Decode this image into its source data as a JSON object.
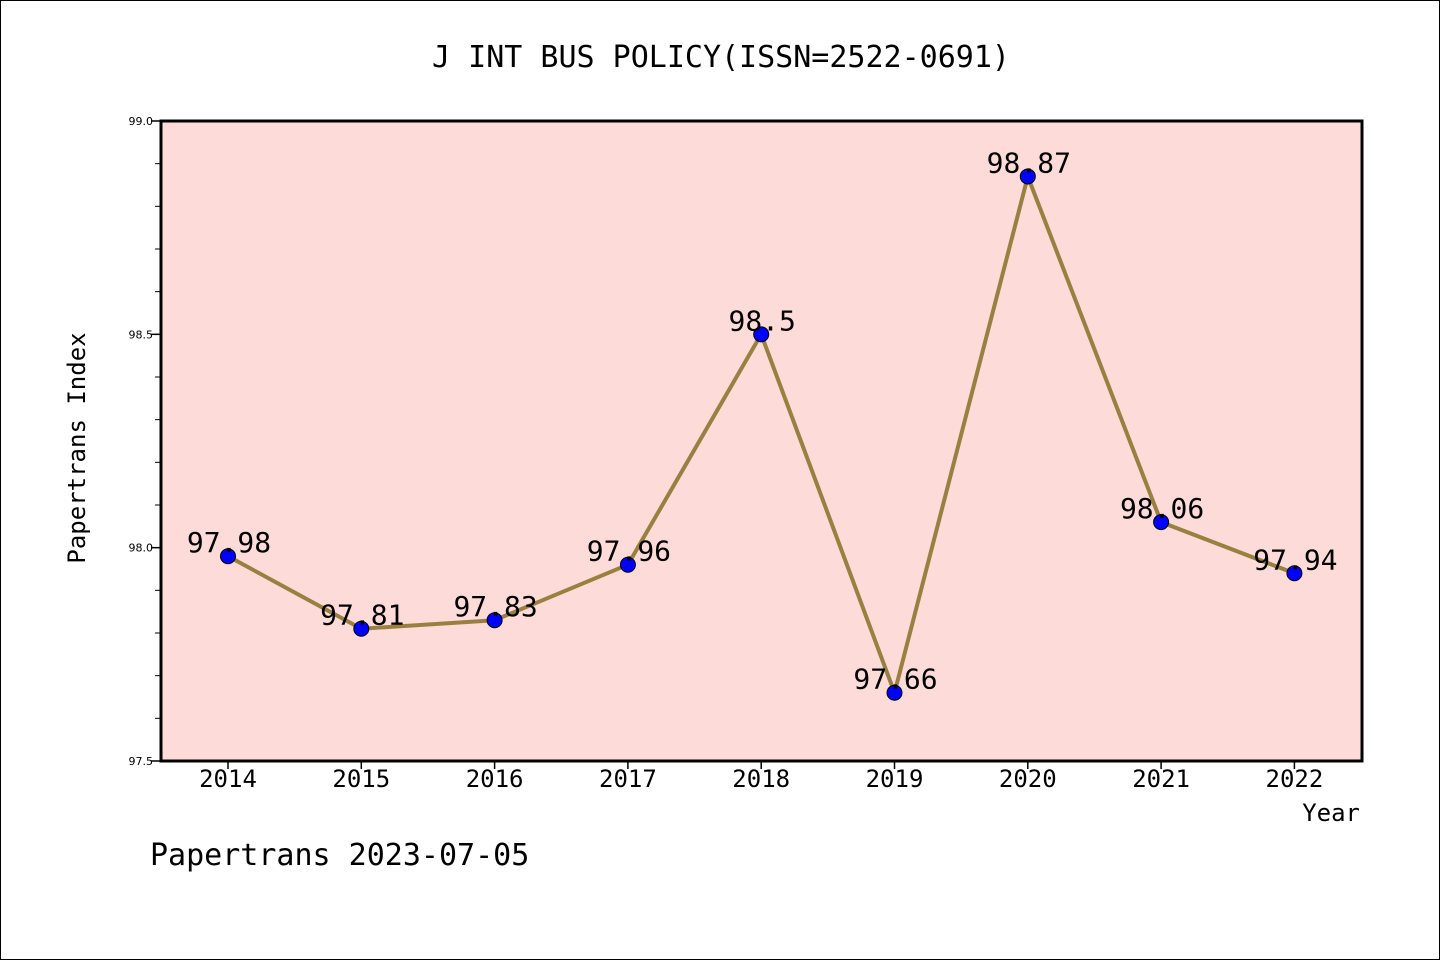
{
  "chart_data": {
    "type": "line",
    "title": "J INT BUS POLICY(ISSN=2522-0691)",
    "xlabel": "Year",
    "ylabel": "Papertrans Index",
    "categories": [
      "2014",
      "2015",
      "2016",
      "2017",
      "2018",
      "2019",
      "2020",
      "2021",
      "2022"
    ],
    "values": [
      97.98,
      97.81,
      97.83,
      97.96,
      98.5,
      97.66,
      98.87,
      98.06,
      97.94
    ],
    "data_labels": [
      "97.98",
      "97.81",
      "97.83",
      "97.96",
      "98.5",
      "97.66",
      "98.87",
      "98.06",
      "97.94"
    ],
    "ylim": [
      97.5,
      99.0
    ],
    "yticks": [
      "97.5",
      "98.0",
      "98.5",
      "99.0"
    ],
    "grid": false,
    "colors": {
      "plot_background": "#fddbd8",
      "line": "#9a8040",
      "marker": "#0000ff"
    },
    "footer": "Papertrans 2023-07-05"
  }
}
